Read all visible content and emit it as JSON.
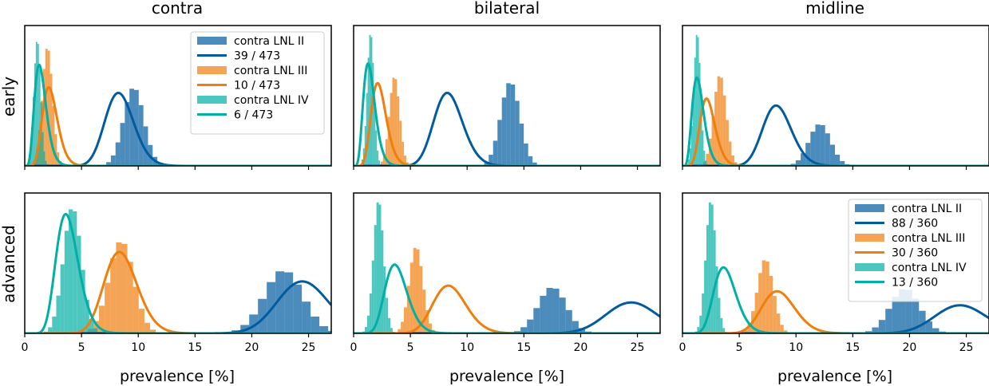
{
  "figure": {
    "columns": [
      "contra",
      "bilateral",
      "midline"
    ],
    "rows": [
      "early",
      "advanced"
    ],
    "xlabel": "prevalence [%]"
  },
  "colors": {
    "LNL II": "#005b9f",
    "LNL III": "#f07d0c",
    "LNL IV": "#00afa5"
  },
  "chart_data": [
    {
      "type": "histogram-with-line",
      "row": "early",
      "column": "contra",
      "xlim": [
        0,
        27
      ],
      "xticks": [
        0,
        5,
        10,
        15,
        20,
        25
      ],
      "xlabel": "",
      "ylabel": "early",
      "legend": {
        "placement": "top-right",
        "entries": [
          "contra LNL II",
          "39 / 473",
          "contra LNL III",
          "10 / 473",
          "contra LNL IV",
          "6 / 473"
        ]
      },
      "series": [
        {
          "name": "contra LNL II",
          "lnl": "LNL II",
          "histogram": {
            "mean": 9.6,
            "sd": 0.9,
            "peak": 0.56
          },
          "observed": {
            "k": 39,
            "n": 473,
            "peak": 0.52
          }
        },
        {
          "name": "contra LNL III",
          "lnl": "LNL III",
          "histogram": {
            "mean": 2.0,
            "sd": 0.45,
            "peak": 0.85
          },
          "observed": {
            "k": 10,
            "n": 473,
            "peak": 0.56
          }
        },
        {
          "name": "contra LNL IV",
          "lnl": "LNL IV",
          "histogram": {
            "mean": 1.1,
            "sd": 0.3,
            "peak": 0.9
          },
          "observed": {
            "k": 6,
            "n": 473,
            "peak": 0.72
          }
        }
      ]
    },
    {
      "type": "histogram-with-line",
      "row": "early",
      "column": "bilateral",
      "xlim": [
        0,
        27
      ],
      "xticks": [
        0,
        5,
        10,
        15,
        20,
        25
      ],
      "xlabel": "",
      "ylabel": "",
      "series": [
        {
          "name": "LNL II",
          "lnl": "LNL II",
          "histogram": {
            "mean": 13.8,
            "sd": 0.85,
            "peak": 0.6
          },
          "observed": {
            "k": 39,
            "n": 473,
            "peak": 0.52
          }
        },
        {
          "name": "LNL III",
          "lnl": "LNL III",
          "histogram": {
            "mean": 3.6,
            "sd": 0.45,
            "peak": 0.64
          },
          "observed": {
            "k": 10,
            "n": 473,
            "peak": 0.59
          }
        },
        {
          "name": "LNL IV",
          "lnl": "LNL IV",
          "histogram": {
            "mean": 1.5,
            "sd": 0.3,
            "peak": 0.95
          },
          "observed": {
            "k": 6,
            "n": 473,
            "peak": 0.73
          }
        }
      ]
    },
    {
      "type": "histogram-with-line",
      "row": "early",
      "column": "midline",
      "xlim": [
        0,
        27
      ],
      "xticks": [
        0,
        5,
        10,
        15,
        20,
        25
      ],
      "xlabel": "",
      "ylabel": "",
      "series": [
        {
          "name": "LNL II",
          "lnl": "LNL II",
          "histogram": {
            "mean": 12.1,
            "sd": 0.95,
            "peak": 0.3
          },
          "observed": {
            "k": 39,
            "n": 473,
            "peak": 0.43
          }
        },
        {
          "name": "LNL III",
          "lnl": "LNL III",
          "histogram": {
            "mean": 3.3,
            "sd": 0.55,
            "peak": 0.65
          },
          "observed": {
            "k": 10,
            "n": 473,
            "peak": 0.48
          }
        },
        {
          "name": "LNL IV",
          "lnl": "LNL IV",
          "histogram": {
            "mean": 1.3,
            "sd": 0.3,
            "peak": 0.95
          },
          "observed": {
            "k": 6,
            "n": 473,
            "peak": 0.63
          }
        }
      ]
    },
    {
      "type": "histogram-with-line",
      "row": "advanced",
      "column": "contra",
      "xlim": [
        0,
        27
      ],
      "xticks": [
        0,
        5,
        10,
        15,
        20,
        25
      ],
      "xlabel": "prevalence [%]",
      "ylabel": "advanced",
      "series": [
        {
          "name": "LNL II",
          "lnl": "LNL II",
          "histogram": {
            "mean": 22.8,
            "sd": 1.7,
            "peak": 0.45
          },
          "observed": {
            "k": 88,
            "n": 360,
            "peak": 0.37
          }
        },
        {
          "name": "LNL III",
          "lnl": "LNL III",
          "histogram": {
            "mean": 8.5,
            "sd": 1.1,
            "peak": 0.66
          },
          "observed": {
            "k": 30,
            "n": 360,
            "peak": 0.58
          }
        },
        {
          "name": "LNL IV",
          "lnl": "LNL IV",
          "histogram": {
            "mean": 4.2,
            "sd": 0.8,
            "peak": 0.9
          },
          "observed": {
            "k": 13,
            "n": 360,
            "peak": 0.85
          }
        }
      ]
    },
    {
      "type": "histogram-with-line",
      "row": "advanced",
      "column": "bilateral",
      "xlim": [
        0,
        27
      ],
      "xticks": [
        0,
        5,
        10,
        15,
        20,
        25
      ],
      "xlabel": "prevalence [%]",
      "ylabel": "",
      "series": [
        {
          "name": "LNL II",
          "lnl": "LNL II",
          "histogram": {
            "mean": 17.5,
            "sd": 1.25,
            "peak": 0.33
          },
          "observed": {
            "k": 88,
            "n": 360,
            "peak": 0.22
          }
        },
        {
          "name": "LNL III",
          "lnl": "LNL III",
          "histogram": {
            "mean": 5.5,
            "sd": 0.6,
            "peak": 0.62
          },
          "observed": {
            "k": 30,
            "n": 360,
            "peak": 0.34
          }
        },
        {
          "name": "LNL IV",
          "lnl": "LNL IV",
          "histogram": {
            "mean": 2.2,
            "sd": 0.45,
            "peak": 0.95
          },
          "observed": {
            "k": 13,
            "n": 360,
            "peak": 0.49
          }
        }
      ]
    },
    {
      "type": "histogram-with-line",
      "row": "advanced",
      "column": "midline",
      "xlim": [
        0,
        27
      ],
      "xticks": [
        0,
        5,
        10,
        15,
        20,
        25
      ],
      "xlabel": "prevalence [%]",
      "ylabel": "",
      "legend": {
        "placement": "top-right",
        "entries": [
          "contra LNL II",
          "88 / 360",
          "contra LNL III",
          "30 / 360",
          "contra LNL IV",
          "13 / 360"
        ]
      },
      "series": [
        {
          "name": "contra LNL II",
          "lnl": "LNL II",
          "histogram": {
            "mean": 19.6,
            "sd": 1.3,
            "peak": 0.32
          },
          "observed": {
            "k": 88,
            "n": 360,
            "peak": 0.2
          }
        },
        {
          "name": "contra LNL III",
          "lnl": "LNL III",
          "histogram": {
            "mean": 7.3,
            "sd": 0.7,
            "peak": 0.53
          },
          "observed": {
            "k": 30,
            "n": 360,
            "peak": 0.3
          }
        },
        {
          "name": "contra LNL IV",
          "lnl": "LNL IV",
          "histogram": {
            "mean": 2.5,
            "sd": 0.45,
            "peak": 0.95
          },
          "observed": {
            "k": 13,
            "n": 360,
            "peak": 0.47
          }
        }
      ]
    }
  ]
}
